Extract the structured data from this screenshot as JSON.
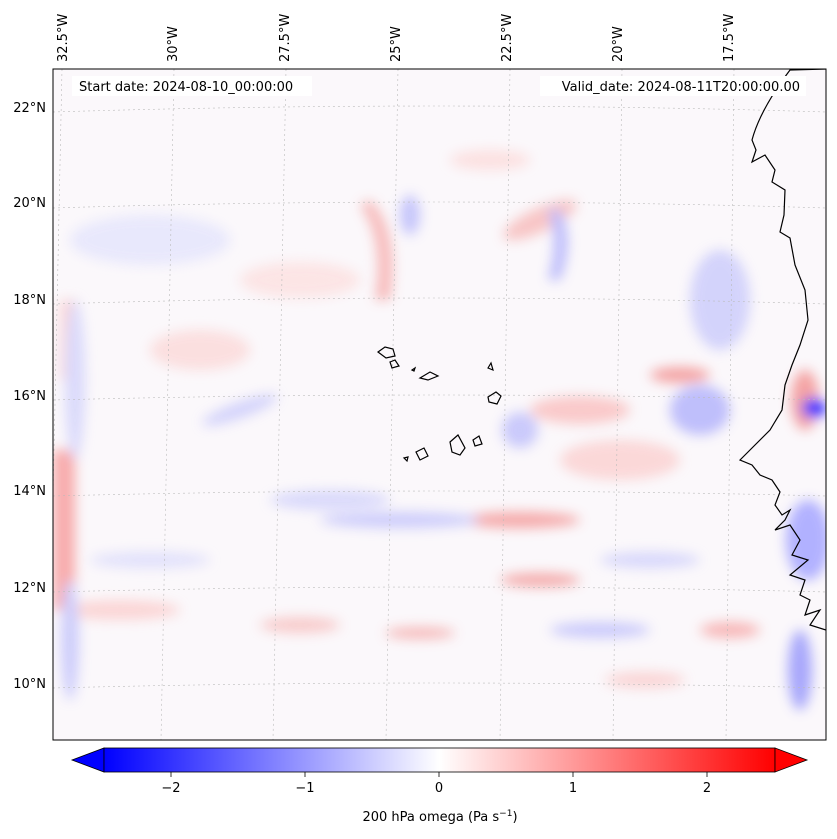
{
  "map": {
    "start_label": "Start date: 2024-08-10_00:00:00",
    "valid_label": "Valid_date: 2024-08-11T20:00:00.00",
    "lon_labels": [
      "32.5°W",
      "30°W",
      "27.5°W",
      "25°W",
      "22.5°W",
      "20°W",
      "17.5°W"
    ],
    "lat_labels": [
      "22°N",
      "20°N",
      "18°N",
      "16°N",
      "14°N",
      "12°N",
      "10°N"
    ],
    "extent_lon": [
      -32.6,
      -15.6
    ],
    "extent_lat": [
      8.8,
      22.8
    ],
    "field": "200 hPa omega",
    "grid": true
  },
  "colorbar": {
    "label_main": "200 hPa omega (Pa s",
    "label_sup": "−1",
    "label_end": ")",
    "ticks": [
      "−2",
      "−1",
      "0",
      "1",
      "2"
    ],
    "tick_values": [
      -2,
      -1,
      0,
      1,
      2
    ],
    "range": [
      -2.5,
      2.5
    ],
    "colormap": "bwr",
    "color_low": "#0000ff",
    "color_mid": "#ffffff",
    "color_high": "#ff0000",
    "extend": "both"
  }
}
